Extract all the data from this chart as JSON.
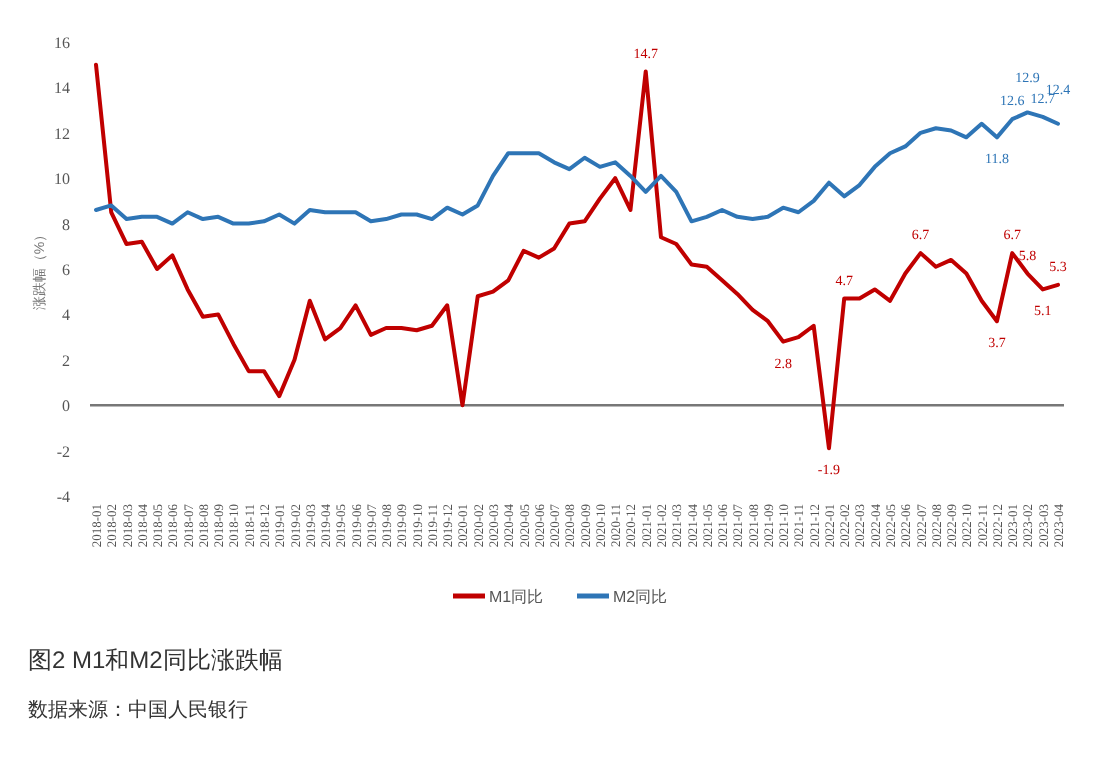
{
  "chart_data": {
    "type": "line",
    "title": "图2 M1和M2同比涨跌幅",
    "ylabel": "涨跌幅（%）",
    "annotations": [
      "数据来源：中国人民银行"
    ],
    "categories": [
      "2018-01",
      "2018-02",
      "2018-03",
      "2018-04",
      "2018-05",
      "2018-06",
      "2018-07",
      "2018-08",
      "2018-09",
      "2018-10",
      "2018-11",
      "2018-12",
      "2019-01",
      "2019-02",
      "2019-03",
      "2019-04",
      "2019-05",
      "2019-06",
      "2019-07",
      "2019-08",
      "2019-09",
      "2019-10",
      "2019-11",
      "2019-12",
      "2020-01",
      "2020-02",
      "2020-03",
      "2020-04",
      "2020-05",
      "2020-06",
      "2020-07",
      "2020-08",
      "2020-09",
      "2020-10",
      "2020-11",
      "2020-12",
      "2021-01",
      "2021-02",
      "2021-03",
      "2021-04",
      "2021-05",
      "2021-06",
      "2021-07",
      "2021-08",
      "2021-09",
      "2021-10",
      "2021-11",
      "2021-12",
      "2022-01",
      "2022-02",
      "2022-03",
      "2022-04",
      "2022-05",
      "2022-06",
      "2022-07",
      "2022-08",
      "2022-09",
      "2022-10",
      "2022-11",
      "2022-12",
      "2023-01",
      "2023-02",
      "2023-03",
      "2023-04"
    ],
    "series": [
      {
        "name": "M1同比",
        "color": "#c00000",
        "values": [
          15.0,
          8.5,
          7.1,
          7.2,
          6.0,
          6.6,
          5.1,
          3.9,
          4.0,
          2.7,
          1.5,
          1.5,
          0.4,
          2.0,
          4.6,
          2.9,
          3.4,
          4.4,
          3.1,
          3.4,
          3.4,
          3.3,
          3.5,
          4.4,
          0.0,
          4.8,
          5.0,
          5.5,
          6.8,
          6.5,
          6.9,
          8.0,
          8.1,
          9.1,
          10.0,
          8.6,
          14.7,
          7.4,
          7.1,
          6.2,
          6.1,
          5.5,
          4.9,
          4.2,
          3.7,
          2.8,
          3.0,
          3.5,
          -1.9,
          4.7,
          4.7,
          5.1,
          4.6,
          5.8,
          6.7,
          6.1,
          6.4,
          5.8,
          4.6,
          3.7,
          6.7,
          5.8,
          5.1,
          5.3
        ],
        "value_labels": [
          null,
          null,
          null,
          null,
          null,
          null,
          null,
          null,
          null,
          null,
          null,
          null,
          null,
          null,
          null,
          null,
          null,
          null,
          null,
          null,
          null,
          null,
          null,
          null,
          null,
          null,
          null,
          null,
          null,
          null,
          null,
          null,
          null,
          null,
          null,
          null,
          "14.7",
          null,
          null,
          null,
          null,
          null,
          null,
          null,
          null,
          "2.8",
          null,
          null,
          "-1.9",
          "4.7",
          null,
          null,
          null,
          null,
          "6.7",
          null,
          null,
          null,
          null,
          "3.7",
          "6.7",
          "5.8",
          "5.1",
          "5.3"
        ]
      },
      {
        "name": "M2同比",
        "color": "#2e75b6",
        "values": [
          8.6,
          8.8,
          8.2,
          8.3,
          8.3,
          8.0,
          8.5,
          8.2,
          8.3,
          8.0,
          8.0,
          8.1,
          8.4,
          8.0,
          8.6,
          8.5,
          8.5,
          8.5,
          8.1,
          8.2,
          8.4,
          8.4,
          8.2,
          8.7,
          8.4,
          8.8,
          10.1,
          11.1,
          11.1,
          11.1,
          10.7,
          10.4,
          10.9,
          10.5,
          10.7,
          10.1,
          9.4,
          10.1,
          9.4,
          8.1,
          8.3,
          8.6,
          8.3,
          8.2,
          8.3,
          8.7,
          8.5,
          9.0,
          9.8,
          9.2,
          9.7,
          10.5,
          11.1,
          11.4,
          12.0,
          12.2,
          12.1,
          11.8,
          12.4,
          11.8,
          12.6,
          12.9,
          12.7,
          12.4
        ],
        "value_labels": [
          null,
          null,
          null,
          null,
          null,
          null,
          null,
          null,
          null,
          null,
          null,
          null,
          null,
          null,
          null,
          null,
          null,
          null,
          null,
          null,
          null,
          null,
          null,
          null,
          null,
          null,
          null,
          null,
          null,
          null,
          null,
          null,
          null,
          null,
          null,
          null,
          null,
          null,
          null,
          null,
          null,
          null,
          null,
          null,
          null,
          null,
          null,
          null,
          null,
          null,
          null,
          null,
          null,
          null,
          null,
          null,
          null,
          null,
          null,
          "11.8",
          "12.6",
          "12.9",
          "12.7",
          "12.4"
        ]
      }
    ],
    "ylim": [
      -4,
      16
    ],
    "yticks": [
      -4,
      -2,
      0,
      2,
      4,
      6,
      8,
      10,
      12,
      14,
      16
    ],
    "legend": "bottom",
    "marker": "none",
    "line_style": "solid"
  }
}
